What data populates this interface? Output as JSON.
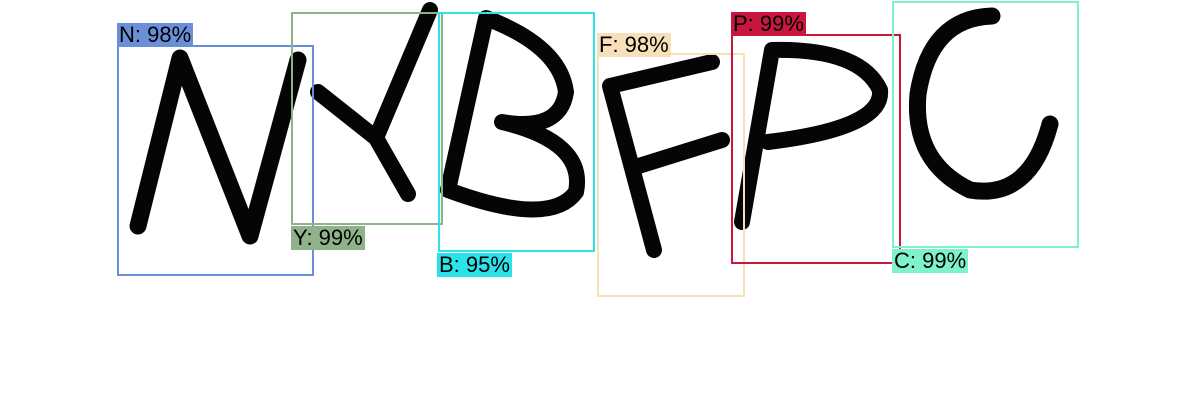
{
  "detections": [
    {
      "id": "n",
      "label": "N: 98%",
      "color": "#6a8fd8"
    },
    {
      "id": "y",
      "label": "Y: 99%",
      "color": "#8fb28a"
    },
    {
      "id": "b",
      "label": "B: 95%",
      "color": "#2ae4ea"
    },
    {
      "id": "f",
      "label": "F: 98%",
      "color": "#f7dfb9"
    },
    {
      "id": "p",
      "label": "P: 99%",
      "color": "#c8163e"
    },
    {
      "id": "c",
      "label": "C: 99%",
      "color": "#7ff2cc"
    }
  ]
}
